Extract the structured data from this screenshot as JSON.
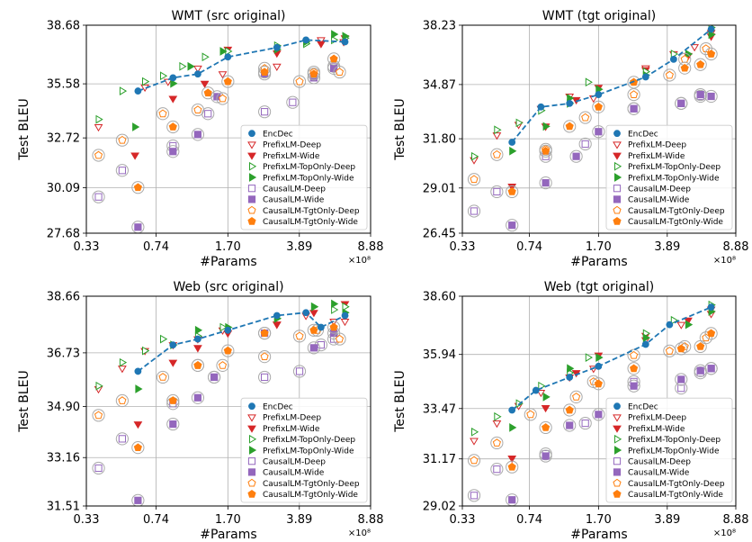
{
  "colors": {
    "EncDec": "#1f77b4",
    "PrefixLM-Deep": "#d62728",
    "PrefixLM-Wide": "#d62728",
    "PrefixLM-TopOnly-Deep": "#2ca02c",
    "PrefixLM-TopOnly-Wide": "#2ca02c",
    "CausalLM-Deep": "#9467bd",
    "CausalLM-Wide": "#9467bd",
    "CausalLM-TgtOnly-Deep": "#ff7f0e",
    "CausalLM-TgtOnly-Wide": "#ff7f0e",
    "ring": "#aaaaaa"
  },
  "chart_data": [
    {
      "type": "scatter",
      "title": "WMT (src original)",
      "xlabel": "#Params",
      "ylabel": "Test BLEU",
      "x_multiplier": "×10⁸",
      "x_scale": "log",
      "xlim": [
        0.33,
        8.88
      ],
      "ylim": [
        27.68,
        38.68
      ],
      "xticks": [
        "0.33",
        "0.74",
        "1.70",
        "3.89",
        "8.88"
      ],
      "yticks": [
        "27.68",
        "30.09",
        "32.72",
        "35.58",
        "38.68"
      ],
      "grid": true,
      "legend_position": "lower right",
      "series": [
        {
          "name": "EncDec",
          "marker": "circle",
          "filled": true,
          "line": "dashed",
          "x": [
            0.6,
            0.9,
            1.2,
            1.7,
            3.0,
            4.2,
            6.6
          ],
          "y": [
            35.2,
            35.9,
            36.1,
            37.0,
            37.5,
            37.9,
            37.8
          ]
        },
        {
          "name": "PrefixLM-Deep",
          "marker": "triangle-down",
          "filled": false,
          "x": [
            0.38,
            0.65,
            0.85,
            1.2,
            1.6,
            3.0,
            5.0,
            6.5
          ],
          "y": [
            33.3,
            35.4,
            35.7,
            36.4,
            36.1,
            36.5,
            37.9,
            37.8
          ]
        },
        {
          "name": "PrefixLM-Wide",
          "marker": "triangle-down",
          "filled": true,
          "x": [
            0.58,
            0.9,
            1.3,
            1.7,
            3.0,
            5.0,
            6.6
          ],
          "y": [
            31.8,
            34.8,
            35.6,
            37.4,
            37.2,
            37.7,
            38.0
          ]
        },
        {
          "name": "PrefixLM-TopOnly-Deep",
          "marker": "triangle-right",
          "filled": false,
          "x": [
            0.38,
            0.5,
            0.65,
            0.8,
            1.0,
            1.3,
            1.7,
            3.0,
            4.2,
            5.8,
            6.6
          ],
          "y": [
            33.7,
            35.2,
            35.7,
            36.0,
            36.5,
            37.0,
            37.3,
            37.6,
            37.7,
            37.9,
            38.0
          ]
        },
        {
          "name": "PrefixLM-TopOnly-Wide",
          "marker": "triangle-right",
          "filled": true,
          "x": [
            0.58,
            0.9,
            1.1,
            1.6,
            3.0,
            4.2,
            5.8,
            6.6
          ],
          "y": [
            33.3,
            35.6,
            36.5,
            37.3,
            37.4,
            37.8,
            38.2,
            38.1
          ]
        },
        {
          "name": "CausalLM-Deep",
          "marker": "square",
          "filled": false,
          "ring": true,
          "x": [
            0.38,
            0.5,
            0.9,
            1.35,
            2.6,
            3.6,
            4.6,
            5.8
          ],
          "y": [
            29.6,
            31.0,
            32.3,
            34.0,
            34.1,
            34.6,
            35.9,
            36.5
          ]
        },
        {
          "name": "CausalLM-Wide",
          "marker": "square",
          "filled": true,
          "ring": true,
          "x": [
            0.6,
            0.9,
            1.2,
            1.5,
            2.6,
            4.6,
            5.8
          ],
          "y": [
            28.0,
            32.0,
            32.9,
            34.9,
            36.1,
            35.9,
            36.4
          ]
        },
        {
          "name": "CausalLM-TgtOnly-Deep",
          "marker": "pentagon",
          "filled": false,
          "ring": true,
          "x": [
            0.38,
            0.5,
            0.8,
            1.2,
            1.6,
            2.6,
            3.9,
            4.6,
            6.2
          ],
          "y": [
            31.8,
            32.6,
            34.0,
            34.2,
            34.8,
            36.4,
            35.7,
            36.2,
            36.2
          ]
        },
        {
          "name": "CausalLM-TgtOnly-Wide",
          "marker": "pentagon",
          "filled": true,
          "ring": true,
          "x": [
            0.6,
            0.9,
            1.35,
            1.7,
            2.6,
            4.6,
            5.8
          ],
          "y": [
            30.1,
            33.3,
            35.1,
            35.7,
            36.2,
            36.1,
            36.9
          ]
        }
      ]
    },
    {
      "type": "scatter",
      "title": "WMT (tgt original)",
      "xlabel": "#Params",
      "ylabel": "Test BLEU",
      "x_multiplier": "×10⁸",
      "x_scale": "log",
      "xlim": [
        0.33,
        8.88
      ],
      "ylim": [
        26.45,
        38.23
      ],
      "xticks": [
        "0.33",
        "0.74",
        "1.70",
        "3.89",
        "8.88"
      ],
      "yticks": [
        "26.45",
        "29.01",
        "31.80",
        "34.87",
        "38.23"
      ],
      "grid": true,
      "legend_position": "lower right",
      "series": [
        {
          "name": "EncDec",
          "marker": "circle",
          "filled": true,
          "line": "dashed",
          "x": [
            0.6,
            0.85,
            1.2,
            1.7,
            3.0,
            4.2,
            6.6
          ],
          "y": [
            31.6,
            33.6,
            33.8,
            34.3,
            35.3,
            36.3,
            38.0
          ]
        },
        {
          "name": "PrefixLM-Deep",
          "marker": "triangle-down",
          "filled": false,
          "x": [
            0.38,
            0.5,
            0.65,
            0.85,
            1.2,
            1.6,
            3.0,
            4.2,
            5.4,
            6.6
          ],
          "y": [
            30.6,
            32.0,
            32.6,
            33.5,
            34.2,
            34.1,
            35.8,
            36.6,
            37.0,
            37.8
          ]
        },
        {
          "name": "PrefixLM-Wide",
          "marker": "triangle-down",
          "filled": true,
          "x": [
            0.6,
            0.9,
            1.3,
            1.7,
            3.0,
            5.0,
            6.6
          ],
          "y": [
            29.1,
            32.5,
            34.0,
            34.7,
            35.7,
            36.5,
            37.6
          ]
        },
        {
          "name": "PrefixLM-TopOnly-Deep",
          "marker": "triangle-right",
          "filled": false,
          "x": [
            0.38,
            0.5,
            0.65,
            0.85,
            1.2,
            1.5,
            3.0,
            4.2,
            6.6
          ],
          "y": [
            30.8,
            32.3,
            32.7,
            33.4,
            33.8,
            35.0,
            35.6,
            36.6,
            38.1
          ]
        },
        {
          "name": "PrefixLM-TopOnly-Wide",
          "marker": "triangle-right",
          "filled": true,
          "x": [
            0.6,
            0.9,
            1.2,
            1.7,
            3.0,
            5.0,
            6.6
          ],
          "y": [
            31.1,
            32.5,
            34.1,
            34.6,
            35.4,
            36.6,
            37.7
          ]
        },
        {
          "name": "CausalLM-Deep",
          "marker": "square",
          "filled": false,
          "ring": true,
          "x": [
            0.38,
            0.5,
            0.9,
            1.45,
            2.6,
            4.6,
            5.8
          ],
          "y": [
            27.7,
            28.8,
            30.8,
            31.5,
            33.5,
            33.8,
            34.2
          ]
        },
        {
          "name": "CausalLM-Wide",
          "marker": "square",
          "filled": true,
          "ring": true,
          "x": [
            0.6,
            0.9,
            1.3,
            1.7,
            2.6,
            4.6,
            5.8,
            6.6
          ],
          "y": [
            26.9,
            29.3,
            30.8,
            32.2,
            33.5,
            33.8,
            34.3,
            34.2
          ]
        },
        {
          "name": "CausalLM-TgtOnly-Deep",
          "marker": "pentagon",
          "filled": false,
          "ring": true,
          "x": [
            0.38,
            0.5,
            0.9,
            1.45,
            2.6,
            4.0,
            4.8,
            6.2
          ],
          "y": [
            29.5,
            30.9,
            31.2,
            33.0,
            34.3,
            35.4,
            36.3,
            36.9
          ]
        },
        {
          "name": "CausalLM-TgtOnly-Wide",
          "marker": "pentagon",
          "filled": true,
          "ring": true,
          "x": [
            0.6,
            0.9,
            1.2,
            1.7,
            2.6,
            4.8,
            5.8,
            6.6
          ],
          "y": [
            28.8,
            31.1,
            32.5,
            33.6,
            35.0,
            35.8,
            36.0,
            36.6
          ]
        }
      ]
    },
    {
      "type": "scatter",
      "title": "Web (src original)",
      "xlabel": "#Params",
      "ylabel": "Test BLEU",
      "x_multiplier": "×10⁸",
      "x_scale": "log",
      "xlim": [
        0.33,
        8.88
      ],
      "ylim": [
        31.51,
        38.66
      ],
      "xticks": [
        "0.33",
        "0.74",
        "1.70",
        "3.89",
        "8.88"
      ],
      "yticks": [
        "31.51",
        "33.16",
        "34.90",
        "36.73",
        "38.66"
      ],
      "grid": true,
      "legend_position": "lower right",
      "series": [
        {
          "name": "EncDec",
          "marker": "circle",
          "filled": true,
          "line": "dashed",
          "x": [
            0.6,
            0.9,
            1.2,
            1.7,
            3.0,
            4.2,
            5.0,
            6.6
          ],
          "y": [
            36.1,
            37.0,
            37.2,
            37.5,
            38.0,
            38.1,
            37.6,
            38.0
          ]
        },
        {
          "name": "PrefixLM-Deep",
          "marker": "triangle-down",
          "filled": false,
          "x": [
            0.38,
            0.5,
            0.65,
            0.9,
            1.2,
            1.6,
            3.0,
            4.2,
            5.8,
            6.6
          ],
          "y": [
            35.5,
            36.2,
            36.8,
            37.0,
            37.2,
            37.5,
            37.7,
            38.0,
            37.8,
            37.8
          ]
        },
        {
          "name": "PrefixLM-Wide",
          "marker": "triangle-down",
          "filled": true,
          "x": [
            0.6,
            0.9,
            1.2,
            1.7,
            3.0,
            4.6,
            6.6
          ],
          "y": [
            34.3,
            36.4,
            36.9,
            37.4,
            37.7,
            38.1,
            38.4
          ]
        },
        {
          "name": "PrefixLM-TopOnly-Deep",
          "marker": "triangle-right",
          "filled": false,
          "x": [
            0.38,
            0.5,
            0.65,
            0.8,
            1.2,
            1.6,
            3.0,
            4.6,
            5.8,
            6.6
          ],
          "y": [
            35.6,
            36.4,
            36.8,
            37.2,
            37.3,
            37.6,
            37.9,
            38.3,
            38.2,
            38.3
          ]
        },
        {
          "name": "PrefixLM-TopOnly-Wide",
          "marker": "triangle-right",
          "filled": true,
          "x": [
            0.6,
            0.9,
            1.2,
            1.7,
            3.0,
            4.6,
            5.8,
            6.6
          ],
          "y": [
            35.5,
            37.0,
            37.5,
            37.6,
            37.9,
            38.3,
            38.4,
            38.1
          ]
        },
        {
          "name": "CausalLM-Deep",
          "marker": "square",
          "filled": false,
          "ring": true,
          "x": [
            0.38,
            0.5,
            0.9,
            1.45,
            2.6,
            3.9,
            5.0,
            5.8
          ],
          "y": [
            32.8,
            33.8,
            35.0,
            35.9,
            35.9,
            36.1,
            37.0,
            37.2
          ]
        },
        {
          "name": "CausalLM-Wide",
          "marker": "square",
          "filled": true,
          "ring": true,
          "x": [
            0.6,
            0.9,
            1.2,
            1.45,
            2.6,
            4.6,
            5.8
          ],
          "y": [
            31.7,
            34.3,
            35.2,
            35.9,
            37.4,
            36.9,
            37.4
          ]
        },
        {
          "name": "CausalLM-TgtOnly-Deep",
          "marker": "pentagon",
          "filled": false,
          "ring": true,
          "x": [
            0.38,
            0.5,
            0.8,
            1.2,
            1.6,
            2.6,
            3.9,
            4.8,
            6.2
          ],
          "y": [
            34.6,
            35.1,
            35.9,
            36.3,
            36.3,
            36.6,
            37.3,
            37.5,
            37.2
          ]
        },
        {
          "name": "CausalLM-TgtOnly-Wide",
          "marker": "pentagon",
          "filled": true,
          "ring": true,
          "x": [
            0.6,
            0.9,
            1.2,
            1.7,
            2.6,
            4.6,
            5.8
          ],
          "y": [
            33.5,
            35.1,
            36.3,
            36.8,
            37.4,
            37.5,
            37.6
          ]
        }
      ]
    },
    {
      "type": "scatter",
      "title": "Web (tgt original)",
      "xlabel": "#Params",
      "ylabel": "Test BLEU",
      "x_multiplier": "×10⁸",
      "x_scale": "log",
      "xlim": [
        0.33,
        8.88
      ],
      "ylim": [
        29.02,
        38.6
      ],
      "xticks": [
        "0.33",
        "0.74",
        "1.70",
        "3.89",
        "8.88"
      ],
      "yticks": [
        "29.02",
        "31.17",
        "33.47",
        "35.94",
        "38.60"
      ],
      "grid": true,
      "legend_position": "lower right",
      "series": [
        {
          "name": "EncDec",
          "marker": "circle",
          "filled": true,
          "line": "dashed",
          "x": [
            0.6,
            0.8,
            1.2,
            1.7,
            3.0,
            4.0,
            6.6
          ],
          "y": [
            33.4,
            34.3,
            34.9,
            35.4,
            36.4,
            37.3,
            38.1
          ]
        },
        {
          "name": "PrefixLM-Deep",
          "marker": "triangle-down",
          "filled": false,
          "x": [
            0.38,
            0.5,
            0.65,
            0.85,
            1.2,
            1.6,
            3.0,
            4.6,
            6.6
          ],
          "y": [
            32.0,
            32.8,
            33.6,
            34.2,
            34.9,
            35.3,
            36.6,
            37.3,
            37.8
          ]
        },
        {
          "name": "PrefixLM-Wide",
          "marker": "triangle-down",
          "filled": true,
          "x": [
            0.6,
            0.9,
            1.3,
            1.7,
            3.0,
            5.0,
            6.6
          ],
          "y": [
            31.2,
            33.5,
            35.1,
            35.9,
            36.8,
            37.5,
            38.0
          ]
        },
        {
          "name": "PrefixLM-TopOnly-Deep",
          "marker": "triangle-right",
          "filled": false,
          "x": [
            0.38,
            0.5,
            0.65,
            0.85,
            1.2,
            1.5,
            3.0,
            4.2,
            6.6
          ],
          "y": [
            32.4,
            33.1,
            33.7,
            34.5,
            35.1,
            35.8,
            36.9,
            37.5,
            38.2
          ]
        },
        {
          "name": "PrefixLM-TopOnly-Wide",
          "marker": "triangle-right",
          "filled": true,
          "x": [
            0.6,
            0.9,
            1.2,
            1.7,
            3.0,
            5.0,
            6.6
          ],
          "y": [
            32.6,
            34.0,
            35.3,
            35.8,
            36.7,
            37.3,
            37.9
          ]
        },
        {
          "name": "CausalLM-Deep",
          "marker": "square",
          "filled": false,
          "ring": true,
          "x": [
            0.38,
            0.5,
            0.9,
            1.45,
            2.6,
            4.6,
            5.8,
            6.6
          ],
          "y": [
            29.5,
            30.7,
            31.4,
            32.8,
            34.7,
            34.4,
            35.1,
            35.3
          ]
        },
        {
          "name": "CausalLM-Wide",
          "marker": "square",
          "filled": true,
          "ring": true,
          "x": [
            0.6,
            0.9,
            1.2,
            1.7,
            2.6,
            4.6,
            5.8,
            6.6
          ],
          "y": [
            29.3,
            31.3,
            32.7,
            33.2,
            34.5,
            34.8,
            35.2,
            35.3
          ]
        },
        {
          "name": "CausalLM-TgtOnly-Deep",
          "marker": "pentagon",
          "filled": false,
          "ring": true,
          "x": [
            0.38,
            0.5,
            0.75,
            1.3,
            1.6,
            2.6,
            4.0,
            4.8,
            6.2
          ],
          "y": [
            31.1,
            31.9,
            33.2,
            34.0,
            34.7,
            35.9,
            36.1,
            36.3,
            36.7
          ]
        },
        {
          "name": "CausalLM-TgtOnly-Wide",
          "marker": "pentagon",
          "filled": true,
          "ring": true,
          "x": [
            0.6,
            0.9,
            1.2,
            1.7,
            2.6,
            4.6,
            5.8,
            6.6
          ],
          "y": [
            30.8,
            32.6,
            33.4,
            34.6,
            35.3,
            36.2,
            36.3,
            36.9
          ]
        }
      ]
    }
  ]
}
